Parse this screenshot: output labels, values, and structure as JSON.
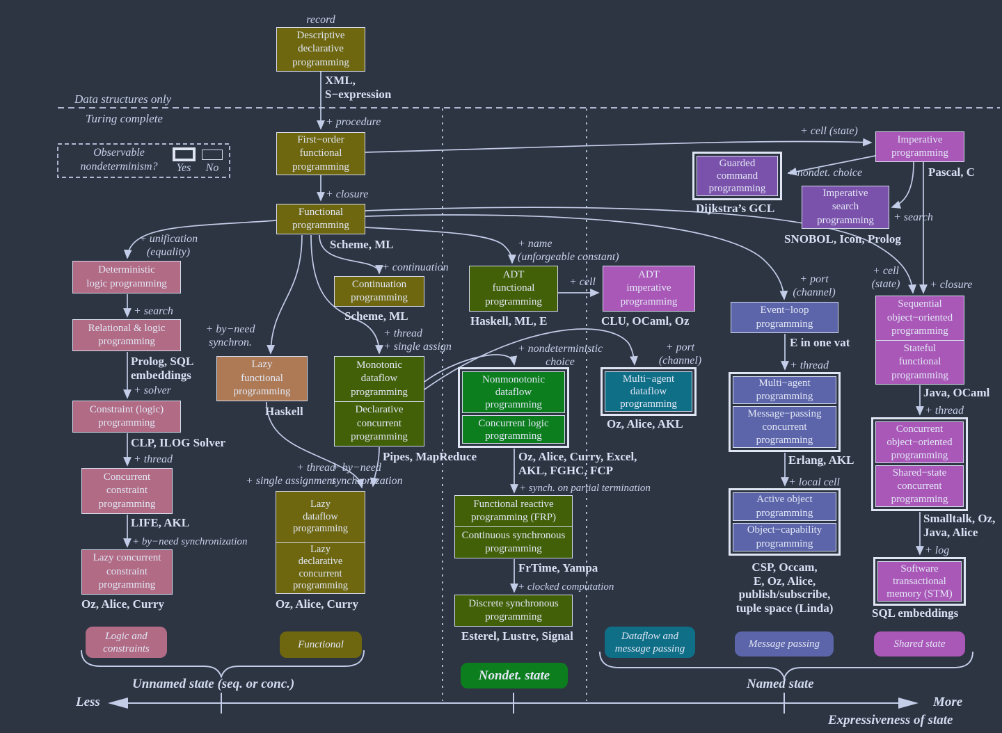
{
  "palette": {
    "background": "#2d3442",
    "line": "#c3cde8",
    "box_border": "#d7ddee",
    "box_text": "#e2e7f5",
    "label_text": "#c9d2ec",
    "olive": "#6e6710",
    "pink": "#b16b85",
    "tan": "#ad7a55",
    "darkgreen": "#426008",
    "brightgreen": "#0c7e1e",
    "teal": "#0f6f87",
    "slate": "#5d65aa",
    "purple": "#7b52ab",
    "orchid": "#aa58b8"
  },
  "legend": {
    "title": "Observable\nnondeterminism?",
    "yes": "Yes",
    "no": "No"
  },
  "nodes": [
    {
      "id": "descriptive",
      "family": "olive",
      "cells": [
        [
          "Descriptive",
          "declarative",
          "programming"
        ]
      ]
    },
    {
      "id": "firstorder",
      "family": "olive",
      "cells": [
        [
          "First−order",
          "functional",
          "programming"
        ]
      ]
    },
    {
      "id": "functional",
      "family": "olive",
      "cells": [
        [
          "Functional",
          "programming"
        ]
      ]
    },
    {
      "id": "det_logic",
      "family": "pink",
      "cells": [
        [
          "Deterministic",
          "logic programming"
        ]
      ]
    },
    {
      "id": "rel_logic",
      "family": "pink",
      "cells": [
        [
          "Relational & logic",
          "programming"
        ]
      ]
    },
    {
      "id": "constraint",
      "family": "pink",
      "cells": [
        [
          "Constraint (logic)",
          "programming"
        ]
      ]
    },
    {
      "id": "conc_constraint",
      "family": "pink",
      "cells": [
        [
          "Concurrent",
          "constraint",
          "programming"
        ]
      ]
    },
    {
      "id": "lazy_conc_constraint",
      "family": "pink",
      "cells": [
        [
          "Lazy concurrent",
          "constraint",
          "programming"
        ]
      ]
    },
    {
      "id": "lazy_functional",
      "family": "tan",
      "cells": [
        [
          "Lazy",
          "functional",
          "programming"
        ]
      ]
    },
    {
      "id": "continuation",
      "family": "olive",
      "cells": [
        [
          "Continuation",
          "programming"
        ]
      ]
    },
    {
      "id": "mono_decl",
      "family": "darkgreen",
      "cells": [
        [
          "Monotonic",
          "dataflow",
          "programming"
        ],
        [
          "Declarative",
          "concurrent",
          "programming"
        ]
      ]
    },
    {
      "id": "lazy_df",
      "family": "olive",
      "cells": [
        [
          "Lazy",
          "dataflow",
          "programming"
        ],
        [
          "Lazy",
          "declarative",
          "concurrent",
          "programming"
        ]
      ]
    },
    {
      "id": "adt_func",
      "family": "darkgreen",
      "cells": [
        [
          "ADT",
          "functional",
          "programming"
        ]
      ]
    },
    {
      "id": "adt_imp",
      "family": "orchid",
      "cells": [
        [
          "ADT",
          "imperative",
          "programming"
        ]
      ]
    },
    {
      "id": "nonmono",
      "family": "brightgreen",
      "outlined": true,
      "cells": [
        [
          "Nonmonotonic",
          "dataflow",
          "programming"
        ],
        [
          "Concurrent logic",
          "programming"
        ]
      ]
    },
    {
      "id": "frp",
      "family": "darkgreen",
      "cells": [
        [
          "Functional reactive",
          "programming (FRP)"
        ],
        [
          "Continuous synchronous",
          "programming"
        ]
      ]
    },
    {
      "id": "discrete",
      "family": "darkgreen",
      "cells": [
        [
          "Discrete synchronous",
          "programming"
        ]
      ]
    },
    {
      "id": "ma_dataflow",
      "family": "teal",
      "outlined": true,
      "cells": [
        [
          "Multi−agent",
          "dataflow",
          "programming"
        ]
      ]
    },
    {
      "id": "guarded",
      "family": "purple",
      "outlined": true,
      "cells": [
        [
          "Guarded",
          "command",
          "programming"
        ]
      ]
    },
    {
      "id": "imp_search",
      "family": "purple",
      "cells": [
        [
          "Imperative",
          "search",
          "programming"
        ]
      ]
    },
    {
      "id": "imperative",
      "family": "orchid",
      "cells": [
        [
          "Imperative",
          "programming"
        ]
      ]
    },
    {
      "id": "eventloop",
      "family": "slate",
      "cells": [
        [
          "Event−loop",
          "programming"
        ]
      ]
    },
    {
      "id": "ma_mp",
      "family": "slate",
      "outlined": true,
      "cells": [
        [
          "Multi−agent",
          "programming"
        ],
        [
          "Message−passing",
          "concurrent",
          "programming"
        ]
      ]
    },
    {
      "id": "active_objcap",
      "family": "slate",
      "outlined": true,
      "cells": [
        [
          "Active object",
          "programming"
        ],
        [
          "Object−capability",
          "programming"
        ]
      ]
    },
    {
      "id": "seq_stateful",
      "family": "orchid",
      "cells": [
        [
          "Sequential",
          "object−oriented",
          "programming"
        ],
        [
          "Stateful",
          "functional",
          "programming"
        ]
      ]
    },
    {
      "id": "conc_shared",
      "family": "orchid",
      "outlined": true,
      "cells": [
        [
          "Concurrent",
          "object−oriented",
          "programming"
        ],
        [
          "Shared−state",
          "concurrent",
          "programming"
        ]
      ]
    },
    {
      "id": "stm",
      "family": "orchid",
      "outlined": true,
      "cells": [
        [
          "Software",
          "transactional",
          "memory (STM)"
        ]
      ]
    }
  ],
  "labels": [
    {
      "id": "record",
      "kind": "t",
      "text": "record"
    },
    {
      "id": "xml",
      "kind": "l",
      "text": "XML,\nS−expression"
    },
    {
      "id": "dso",
      "kind": "c",
      "text": "Data structures only"
    },
    {
      "id": "tc",
      "kind": "c",
      "text": "Turing complete"
    },
    {
      "id": "proc",
      "kind": "t",
      "text": "+ procedure"
    },
    {
      "id": "closure1",
      "kind": "t",
      "text": "+ closure"
    },
    {
      "id": "schememl1",
      "kind": "l",
      "text": "Scheme, ML"
    },
    {
      "id": "unification",
      "kind": "t",
      "text": "+ unification\n(equality)"
    },
    {
      "id": "search1",
      "kind": "t",
      "text": "+ search"
    },
    {
      "id": "prologsql",
      "kind": "l",
      "text": "Prolog, SQL\nembeddings"
    },
    {
      "id": "solver",
      "kind": "t",
      "text": "+ solver"
    },
    {
      "id": "clp",
      "kind": "l",
      "text": "CLP, ILOG Solver"
    },
    {
      "id": "thread1",
      "kind": "t",
      "text": "+ thread"
    },
    {
      "id": "life",
      "kind": "l",
      "text": "LIFE, AKL"
    },
    {
      "id": "byneed1",
      "kind": "t",
      "text": "+ by−need synchronization"
    },
    {
      "id": "ozac1",
      "kind": "l",
      "text": "Oz, Alice, Curry"
    },
    {
      "id": "byneedsynchron",
      "kind": "t",
      "text": "+ by−need\nsynchron."
    },
    {
      "id": "haskell1",
      "kind": "l",
      "text": "Haskell"
    },
    {
      "id": "continuation_l",
      "kind": "t",
      "text": "+ continuation"
    },
    {
      "id": "schememl2",
      "kind": "l",
      "text": "Scheme, ML"
    },
    {
      "id": "threadassign1",
      "kind": "t",
      "text": "+ thread\n+ single assign"
    },
    {
      "id": "pipes",
      "kind": "l",
      "text": "Pipes, MapReduce"
    },
    {
      "id": "threadassign2",
      "kind": "t",
      "text": "+ thread\n+ single assignment"
    },
    {
      "id": "byneed2",
      "kind": "t",
      "text": "+ by−need\nsynchronization"
    },
    {
      "id": "ozac2",
      "kind": "l",
      "text": "Oz, Alice, Curry"
    },
    {
      "id": "name",
      "kind": "t",
      "text": "+ name\n(unforgeable constant)"
    },
    {
      "id": "haskellmle",
      "kind": "l",
      "text": "Haskell, ML, E"
    },
    {
      "id": "cell1",
      "kind": "t",
      "text": "+ cell"
    },
    {
      "id": "clu",
      "kind": "l",
      "text": "CLU, OCaml, Oz"
    },
    {
      "id": "nondetchoice",
      "kind": "t",
      "text": "+ nondeterministic\nchoice"
    },
    {
      "id": "ozexcel",
      "kind": "l",
      "text": "Oz, Alice, Curry, Excel,\nAKL, FGHC, FCP"
    },
    {
      "id": "synchpartial",
      "kind": "t",
      "text": "+ synch. on partial termination"
    },
    {
      "id": "frtime",
      "kind": "l",
      "text": "FrTime, Yampa"
    },
    {
      "id": "clocked",
      "kind": "t",
      "text": "+ clocked computation"
    },
    {
      "id": "esterel",
      "kind": "l",
      "text": "Esterel, Lustre, Signal"
    },
    {
      "id": "port1",
      "kind": "t",
      "text": "+ port\n(channel)"
    },
    {
      "id": "ozakl",
      "kind": "l",
      "text": "Oz, Alice, AKL"
    },
    {
      "id": "cellstate1",
      "kind": "t",
      "text": "+ cell (state)"
    },
    {
      "id": "pascal",
      "kind": "l",
      "text": "Pascal, C"
    },
    {
      "id": "nondet2",
      "kind": "t",
      "text": "+ nondet. choice"
    },
    {
      "id": "dijkstra",
      "kind": "l",
      "text": "Dijkstra’s GCL"
    },
    {
      "id": "search2",
      "kind": "t",
      "text": "+ search"
    },
    {
      "id": "snobol",
      "kind": "l",
      "text": "SNOBOL, Icon, Prolog"
    },
    {
      "id": "port2",
      "kind": "t",
      "text": "+ port\n(channel)"
    },
    {
      "id": "evat",
      "kind": "l",
      "text": "E in one vat"
    },
    {
      "id": "thread2",
      "kind": "t",
      "text": "+ thread"
    },
    {
      "id": "erlang",
      "kind": "l",
      "text": "Erlang, AKL"
    },
    {
      "id": "localcell",
      "kind": "t",
      "text": "+ local cell"
    },
    {
      "id": "csp",
      "kind": "l",
      "text": "CSP, Occam,\nE, Oz, Alice,\npublish/subscribe,\ntuple space (Linda)"
    },
    {
      "id": "cellstate2",
      "kind": "t",
      "text": "+ cell\n(state)"
    },
    {
      "id": "closure2",
      "kind": "t",
      "text": "+ closure"
    },
    {
      "id": "javaocaml",
      "kind": "l",
      "text": "Java, OCaml"
    },
    {
      "id": "thread3",
      "kind": "t",
      "text": "+ thread"
    },
    {
      "id": "smalltalk",
      "kind": "l",
      "text": "Smalltalk, Oz,\nJava, Alice"
    },
    {
      "id": "log",
      "kind": "t",
      "text": "+ log"
    },
    {
      "id": "sqlemb",
      "kind": "l",
      "text": "SQL embeddings"
    },
    {
      "id": "unnamed",
      "kind": "a",
      "text": "Unnamed state (seq. or conc.)"
    },
    {
      "id": "named",
      "kind": "a",
      "text": "Named state"
    },
    {
      "id": "less",
      "kind": "a",
      "text": "Less"
    },
    {
      "id": "more",
      "kind": "a",
      "text": "More"
    },
    {
      "id": "expr",
      "kind": "a",
      "text": "Expressiveness of state"
    }
  ],
  "badges": [
    {
      "id": "logic_constraints",
      "family": "pink",
      "text": "Logic and\nconstraints"
    },
    {
      "id": "functional_badge",
      "family": "olive",
      "text": "Functional"
    },
    {
      "id": "nondet_state",
      "family": "brightgreen",
      "emph": true,
      "text": "Nondet. state"
    },
    {
      "id": "dataflow_mp",
      "family": "teal",
      "text": "Dataflow and\nmessage passing"
    },
    {
      "id": "message_passing",
      "family": "slate",
      "text": "Message passing"
    },
    {
      "id": "shared_state",
      "family": "orchid",
      "text": "Shared state"
    }
  ]
}
